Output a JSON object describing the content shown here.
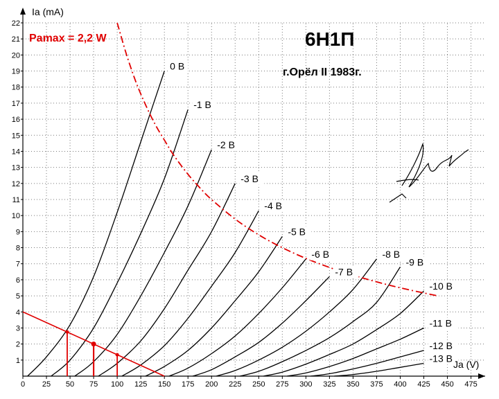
{
  "chart_data": {
    "type": "line",
    "title": "6Н1П",
    "subtitle": "г.Орёл II 1983г.",
    "annotation": "Pamax = 2,2 W",
    "xlabel": "Ja (V)",
    "ylabel": "Ia (mA)",
    "xlim": [
      0,
      490
    ],
    "ylim": [
      0,
      22
    ],
    "xticks": [
      0,
      25,
      50,
      75,
      100,
      125,
      150,
      175,
      200,
      225,
      250,
      275,
      300,
      325,
      350,
      375,
      400,
      425,
      450,
      475
    ],
    "yticks": [
      0,
      1,
      2,
      3,
      4,
      5,
      6,
      7,
      8,
      9,
      10,
      11,
      12,
      13,
      14,
      15,
      16,
      17,
      18,
      19,
      20,
      21,
      22
    ],
    "grid": true,
    "colors": {
      "curves": "#000000",
      "pamax": "#e00000",
      "load_line": "#e00000"
    },
    "series": [
      {
        "name": "0 В",
        "x": [
          5,
          25,
          50,
          75,
          100,
          125,
          150
        ],
        "y": [
          0,
          1.2,
          3.2,
          6.2,
          10.2,
          14.6,
          19.0
        ]
      },
      {
        "name": "-1 В",
        "x": [
          30,
          50,
          75,
          100,
          125,
          150,
          175
        ],
        "y": [
          0,
          1.0,
          3.0,
          5.8,
          8.9,
          12.3,
          16.6
        ]
      },
      {
        "name": "-2 В",
        "x": [
          55,
          75,
          100,
          125,
          150,
          175,
          200
        ],
        "y": [
          0,
          0.9,
          2.6,
          5.0,
          7.7,
          10.6,
          14.1
        ]
      },
      {
        "name": "-3 В",
        "x": [
          80,
          100,
          125,
          150,
          175,
          200,
          225
        ],
        "y": [
          0,
          0.8,
          2.2,
          4.2,
          6.6,
          9.0,
          12.0
        ]
      },
      {
        "name": "-4 В",
        "x": [
          105,
          125,
          150,
          175,
          200,
          225,
          250
        ],
        "y": [
          0,
          0.7,
          1.9,
          3.6,
          5.6,
          7.7,
          10.3
        ]
      },
      {
        "name": "-5 В",
        "x": [
          130,
          150,
          175,
          200,
          225,
          250,
          275
        ],
        "y": [
          0,
          0.6,
          1.6,
          3.0,
          4.7,
          6.5,
          8.7
        ]
      },
      {
        "name": "-6 В",
        "x": [
          155,
          175,
          200,
          225,
          250,
          275,
          300
        ],
        "y": [
          0,
          0.5,
          1.4,
          2.5,
          3.9,
          5.5,
          7.3
        ]
      },
      {
        "name": "-7 В",
        "x": [
          180,
          200,
          225,
          250,
          275,
          300,
          325
        ],
        "y": [
          0,
          0.4,
          1.2,
          2.1,
          3.3,
          4.7,
          6.2
        ]
      },
      {
        "name": "-8 В",
        "x": [
          205,
          225,
          250,
          275,
          300,
          325,
          350,
          375
        ],
        "y": [
          0,
          0.35,
          1.0,
          1.8,
          2.8,
          4.0,
          5.4,
          7.3
        ]
      },
      {
        "name": "-9 В",
        "x": [
          230,
          250,
          275,
          300,
          325,
          350,
          375,
          400
        ],
        "y": [
          0,
          0.3,
          0.9,
          1.6,
          2.4,
          3.4,
          4.6,
          6.8
        ]
      },
      {
        "name": "-10 В",
        "x": [
          255,
          275,
          300,
          325,
          350,
          375,
          400,
          425
        ],
        "y": [
          0,
          0.25,
          0.75,
          1.35,
          2.0,
          2.9,
          3.9,
          5.3
        ]
      },
      {
        "name": "-11 В",
        "x": [
          280,
          300,
          325,
          350,
          375,
          400,
          425
        ],
        "y": [
          0,
          0.2,
          0.6,
          1.1,
          1.7,
          2.3,
          3.0
        ]
      },
      {
        "name": "-12 В",
        "x": [
          305,
          325,
          350,
          375,
          400,
          425
        ],
        "y": [
          0,
          0.15,
          0.45,
          0.8,
          1.2,
          1.6
        ]
      },
      {
        "name": "-13 В",
        "x": [
          330,
          350,
          375,
          400,
          425
        ],
        "y": [
          0,
          0.1,
          0.3,
          0.55,
          0.8
        ]
      }
    ],
    "pamax_curve": {
      "name": "Pamax = 2,2 W",
      "x": [
        100,
        110,
        120,
        130,
        140,
        150,
        160,
        175,
        190,
        200,
        225,
        250,
        275,
        300,
        325,
        350,
        375,
        400,
        425,
        440
      ],
      "y": [
        22.0,
        20.0,
        18.3,
        16.9,
        15.7,
        14.7,
        13.75,
        12.57,
        11.58,
        11.0,
        9.78,
        8.8,
        8.0,
        7.33,
        6.77,
        6.29,
        5.87,
        5.5,
        5.18,
        5.0
      ]
    },
    "load_line": {
      "x": [
        0,
        150
      ],
      "y": [
        4.0,
        0
      ]
    },
    "operating_points": [
      {
        "x": 47,
        "y": 2.75
      },
      {
        "x": 75,
        "y": 2.0
      },
      {
        "x": 100,
        "y": 1.33
      }
    ]
  }
}
